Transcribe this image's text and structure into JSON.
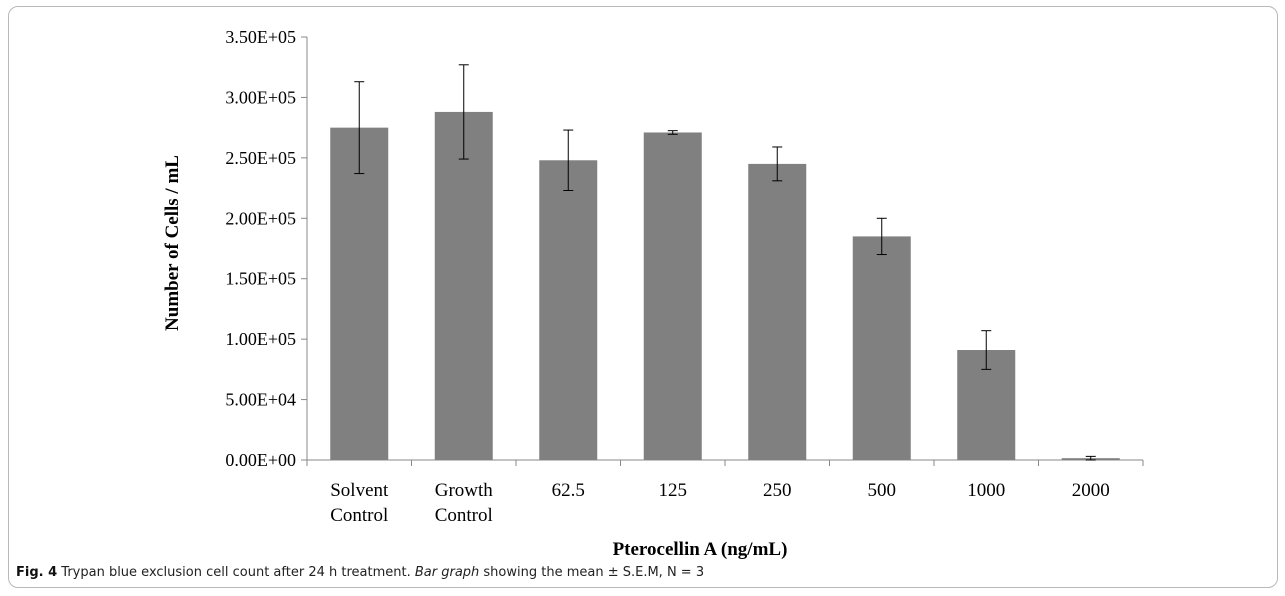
{
  "caption": {
    "label": "Fig. 4",
    "text_before": " Trypan blue exclusion cell count after 24 h treatment. ",
    "emph": "Bar graph",
    "text_after": " showing the mean ± S.E.M, N = 3"
  },
  "chart_data": {
    "type": "bar",
    "xlabel": "Pterocellin A (ng/mL)",
    "ylabel": "Number of Cells / mL",
    "ylim": [
      0,
      350000
    ],
    "y_ticks": [
      0,
      50000,
      100000,
      150000,
      200000,
      250000,
      300000,
      350000
    ],
    "y_tick_labels": [
      "0.00E+00",
      "5.00E+04",
      "1.00E+05",
      "1.50E+05",
      "2.00E+05",
      "2.50E+05",
      "3.00E+05",
      "3.50E+05"
    ],
    "categories": [
      [
        "Solvent",
        "Control"
      ],
      [
        "Growth",
        "Control"
      ],
      [
        "62.5"
      ],
      [
        "125"
      ],
      [
        "250"
      ],
      [
        "500"
      ],
      [
        "1000"
      ],
      [
        "2000"
      ]
    ],
    "values": [
      275000,
      288000,
      248000,
      271000,
      245000,
      185000,
      91000,
      1500
    ],
    "errors": [
      38000,
      39000,
      25000,
      1500,
      14000,
      15000,
      16000,
      1500
    ],
    "bar_color": "#808080",
    "grid": false
  }
}
